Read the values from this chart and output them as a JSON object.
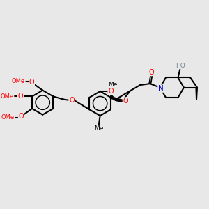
{
  "background_color": "#e8e8e8",
  "bond_color": "#000000",
  "bond_width": 1.5,
  "atom_colors": {
    "O": "#ff0000",
    "N": "#0000cc",
    "H": "#708090",
    "C": "#000000"
  },
  "figsize": [
    3.0,
    3.0
  ],
  "dpi": 100,
  "xlim": [
    0,
    10
  ],
  "ylim": [
    1,
    9
  ]
}
